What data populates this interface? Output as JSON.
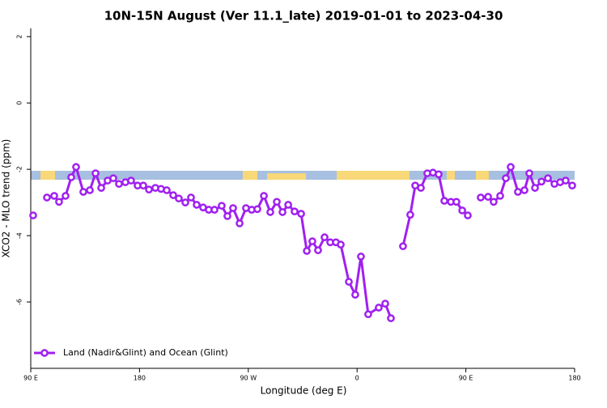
{
  "chart_data": {
    "type": "line",
    "title": "10N-15N August (Ver 11.1_late)   2019-01-01 to 2023-04-30",
    "x_label": "Longitude (deg E)",
    "y_label": "XCO2 - MLO trend (ppm)",
    "xlim": [
      90,
      540
    ],
    "ylim": [
      -8,
      2.25
    ],
    "xticks": [
      {
        "value": 90,
        "label": "90 E"
      },
      {
        "value": 180,
        "label": "180"
      },
      {
        "value": 270,
        "label": "90 W"
      },
      {
        "value": 360,
        "label": "0"
      },
      {
        "value": 450,
        "label": "90 E"
      },
      {
        "value": 540,
        "label": "180"
      }
    ],
    "yticks": [
      2,
      0,
      -2,
      -4,
      -6
    ],
    "legend": "bottom-left",
    "x": [
      92,
      97,
      103.4,
      109.4,
      113.4,
      118.8,
      123.5,
      127.5,
      133.5,
      138.9,
      143.6,
      148.3,
      153.6,
      158.3,
      163,
      168.3,
      173,
      178.4,
      183.1,
      187.8,
      193.1,
      197.8,
      202.5,
      207.9,
      212.5,
      217.9,
      222.6,
      227.3,
      232.6,
      237.3,
      242,
      248,
      252.7,
      257.4,
      262.8,
      268.1,
      272.8,
      277.5,
      282.9,
      288.2,
      293.6,
      298.3,
      303,
      308.3,
      313.7,
      318.4,
      323,
      327.7,
      333.1,
      337.8,
      342.5,
      346.5,
      353.2,
      358.5,
      363.2,
      369.2,
      377.9,
      383.3,
      388,
      393,
      398,
      404,
      408.1,
      412.8,
      418.1,
      422.8,
      427.5,
      432.2,
      437.6,
      442.2,
      447,
      451.6,
      457,
      462.3,
      468.4,
      473,
      478.4,
      483.1,
      487.1,
      493.1,
      498.5,
      502.5,
      507.2,
      512.6,
      517.9,
      523.3,
      528,
      532.6,
      538
    ],
    "series": [
      {
        "name": "Land (Nadir&Glint) and Ocean (Glint)",
        "color": "#a020f0",
        "values": [
          -3.39,
          null,
          -2.85,
          -2.8,
          -2.98,
          -2.8,
          -2.24,
          -1.93,
          -2.68,
          -2.63,
          -2.12,
          -2.56,
          -2.34,
          -2.27,
          -2.44,
          -2.39,
          -2.34,
          -2.49,
          -2.49,
          -2.61,
          -2.56,
          -2.59,
          -2.63,
          -2.78,
          -2.88,
          -3.0,
          -2.85,
          -3.07,
          -3.15,
          -3.22,
          -3.22,
          -3.1,
          -3.41,
          -3.17,
          -3.63,
          -3.17,
          -3.22,
          -3.2,
          -2.8,
          -3.29,
          -2.98,
          -3.29,
          -3.07,
          -3.27,
          -3.34,
          -4.46,
          -4.17,
          -4.44,
          -4.05,
          -4.2,
          -4.2,
          -4.27,
          -5.39,
          -5.78,
          -4.63,
          -6.37,
          -6.17,
          -6.05,
          -6.49,
          null,
          -4.32,
          -3.37,
          -2.49,
          -2.56,
          -2.12,
          -2.1,
          -2.15,
          -2.95,
          -2.98,
          -2.98,
          -3.24,
          -3.39,
          null,
          -2.85,
          -2.83,
          -2.98,
          -2.8,
          -2.27,
          -1.93,
          -2.68,
          -2.63,
          -2.12,
          -2.56,
          -2.37,
          -2.27,
          -2.44,
          -2.39,
          -2.34,
          -2.49
        ]
      }
    ]
  }
}
